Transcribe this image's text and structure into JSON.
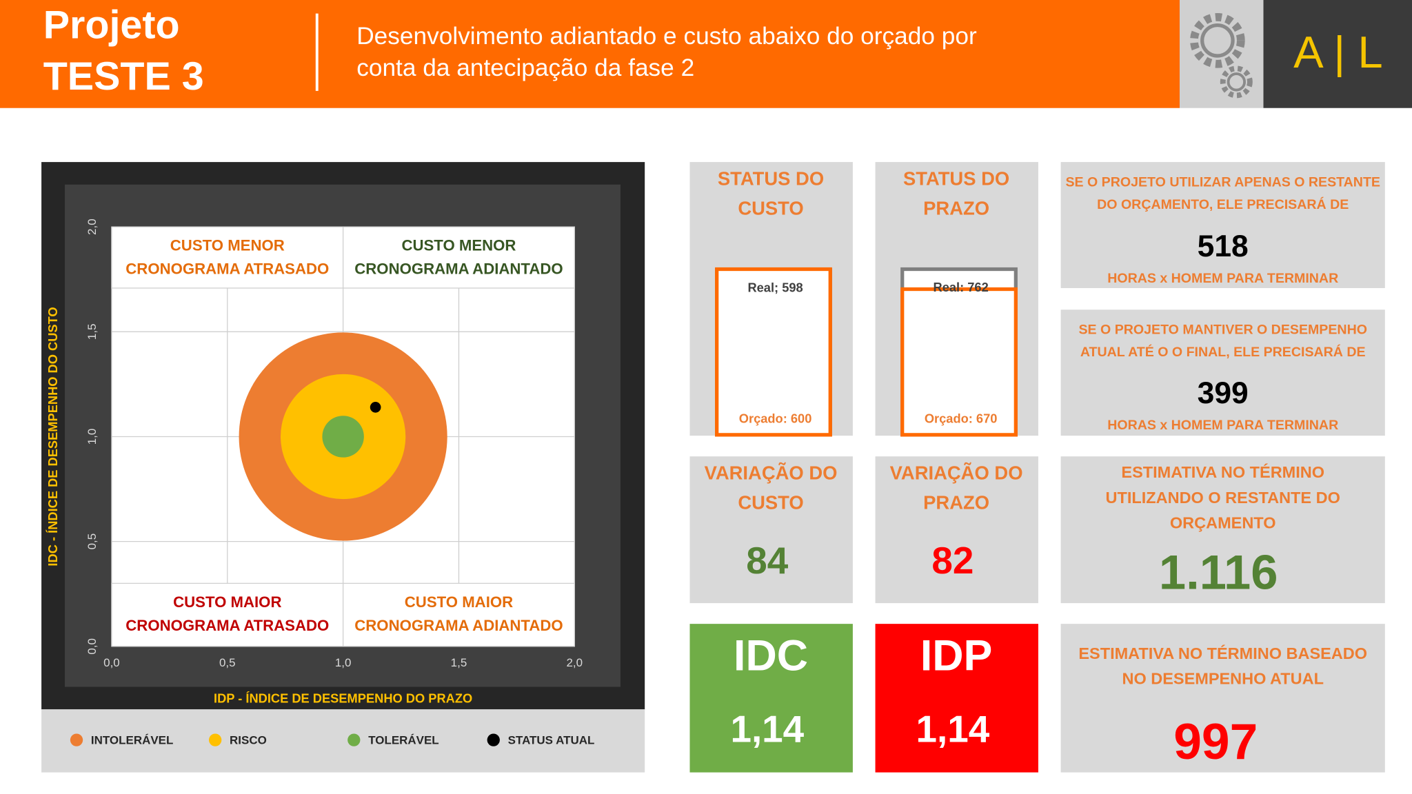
{
  "header": {
    "title": [
      "Projeto",
      "TESTE 3"
    ],
    "subtitle": [
      "Desenvolvimento adiantado e custo abaixo do orçado por",
      "conta da antecipação da fase 2"
    ],
    "logo": "A | L"
  },
  "chart_data": {
    "type": "scatter",
    "xlabel": "IDP - ÍNDICE DE DESEMPENHO DO PRAZO",
    "ylabel": "IDC - ÍNDICE DE DESEMPENHO DO CUSTO",
    "xlim": [
      0,
      2
    ],
    "ylim": [
      0,
      2
    ],
    "xticks": [
      {
        "value": 0,
        "label": "0,0"
      },
      {
        "value": 0.5,
        "label": "0,5"
      },
      {
        "value": 1,
        "label": "1,0"
      },
      {
        "value": 1.5,
        "label": "1,5"
      },
      {
        "value": 2,
        "label": "2,0"
      }
    ],
    "yticks": [
      {
        "value": 0,
        "label": "0,0"
      },
      {
        "value": 0.5,
        "label": "0,5"
      },
      {
        "value": 1,
        "label": "1,0"
      },
      {
        "value": 1.5,
        "label": "1,5"
      },
      {
        "value": 2,
        "label": "2,0"
      }
    ],
    "grid": true,
    "quadrants": [
      {
        "lines": [
          "CUSTO MENOR",
          "CRONOGRAMA ATRASADO"
        ],
        "color": "#e46c0a"
      },
      {
        "lines": [
          "CUSTO MENOR",
          "CRONOGRAMA ADIANTADO"
        ],
        "color": "#375623"
      },
      {
        "lines": [
          "CUSTO MAIOR",
          "CRONOGRAMA ATRASADO"
        ],
        "color": "#c00000"
      },
      {
        "lines": [
          "CUSTO MAIOR",
          "CRONOGRAMA ADIANTADO"
        ],
        "color": "#e46c0a"
      }
    ],
    "series": [
      {
        "name": "INTOLERÁVEL",
        "color": "#ed7d31",
        "x": [
          1
        ],
        "values": [
          1
        ],
        "radius": [
          0.45
        ]
      },
      {
        "name": "RISCO",
        "color": "#ffc000",
        "x": [
          1
        ],
        "values": [
          1
        ],
        "radius": [
          0.27
        ]
      },
      {
        "name": "TOLERÁVEL",
        "color": "#70ad47",
        "x": [
          1
        ],
        "values": [
          1
        ],
        "radius": [
          0.09
        ]
      },
      {
        "name": "STATUS ATUAL",
        "color": "#000000",
        "x": [
          1.14
        ],
        "values": [
          1.14
        ]
      }
    ]
  },
  "cost_status": {
    "title": [
      "STATUS DO",
      "CUSTO"
    ],
    "values": [
      598,
      600
    ],
    "value_labels": [
      "Real; 598",
      "Orçado: 600"
    ],
    "colors": [
      "#7f7f7f",
      "#ff6a00"
    ]
  },
  "schedule_status": {
    "title": [
      "STATUS DO",
      "PRAZO"
    ],
    "values": [
      762,
      670
    ],
    "value_labels": [
      "Real: 762",
      "Orçado: 670"
    ],
    "colors": [
      "#7f7f7f",
      "#ff6a00"
    ]
  },
  "cost_variance": {
    "title": [
      "VARIAÇÃO DO",
      "CUSTO"
    ],
    "value": 84
  },
  "schedule_variance": {
    "title": [
      "VARIAÇÃO DO",
      "PRAZO"
    ],
    "value": 82
  },
  "idc": {
    "title": "IDC",
    "value": "1,14"
  },
  "idp": {
    "title": "IDP",
    "value": "1,14"
  },
  "remaining_budget": {
    "text": [
      "SE O PROJETO UTILIZAR APENAS O RESTANTE",
      "DO ORÇAMENTO, ELE PRECISARÁ DE"
    ],
    "value": 518,
    "unit": "HORAS x HOMEM PARA TERMINAR"
  },
  "current_performance": {
    "text": [
      "SE O PROJETO MANTIVER O DESEMPENHO",
      "ATUAL ATÉ O O FINAL, ELE PRECISARÁ DE"
    ],
    "value": 399,
    "unit": "HORAS x HOMEM PARA TERMINAR"
  },
  "eac_budget": {
    "text": [
      "ESTIMATIVA NO TÉRMINO",
      "UTILIZANDO O RESTANTE DO",
      "ORÇAMENTO"
    ],
    "value": "1.116"
  },
  "eac_performance": {
    "text": [
      "ESTIMATIVA NO TÉRMINO BASEADO",
      "NO DESEMPENHO ATUAL"
    ],
    "value": 997
  }
}
